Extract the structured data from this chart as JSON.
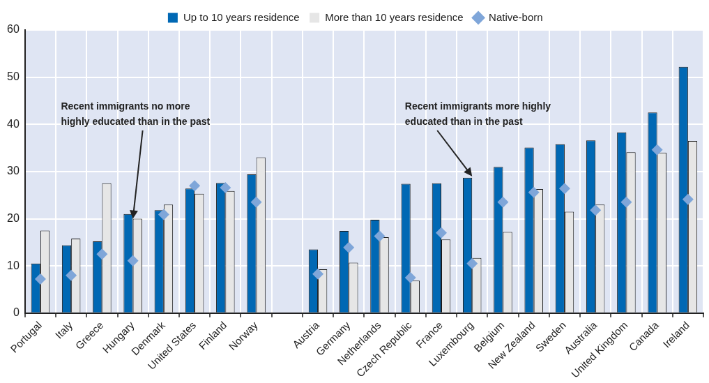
{
  "chart_data": {
    "type": "bar",
    "categories": [
      "Portugal",
      "Italy",
      "Greece",
      "Hungary",
      "Denmark",
      "United States",
      "Finland",
      "Norway",
      null,
      "Austria",
      "Germany",
      "Netherlands",
      "Czech Republic",
      "France",
      "Luxembourg",
      "Belgium",
      "New Zealand",
      "Sweden",
      "Australia",
      "United Kingdom",
      "Canada",
      "Ireland"
    ],
    "series": [
      {
        "name": "Up to 10 years residence",
        "color": "#0068b4",
        "values": [
          10.5,
          14.4,
          15.2,
          21.0,
          21.8,
          26.4,
          27.6,
          29.4,
          null,
          13.5,
          17.4,
          19.8,
          27.4,
          27.5,
          28.7,
          31.0,
          35.1,
          35.8,
          36.6,
          38.3,
          42.5,
          52.2
        ]
      },
      {
        "name": "More than 10 years residence",
        "color": "#e6e6e6",
        "values": [
          17.5,
          15.8,
          27.5,
          20.0,
          23.0,
          25.3,
          25.9,
          33.0,
          null,
          9.3,
          10.7,
          16.1,
          6.9,
          15.6,
          11.7,
          17.2,
          26.3,
          21.5,
          23.0,
          34.1,
          34.0,
          36.5
        ]
      },
      {
        "name": "Native-born",
        "type": "scatter",
        "color": "#7fa6d9",
        "values": [
          7.2,
          8.0,
          12.5,
          11.1,
          20.9,
          27.0,
          26.6,
          23.5,
          null,
          8.3,
          13.9,
          16.3,
          7.5,
          17.0,
          10.5,
          23.5,
          25.6,
          26.4,
          21.8,
          23.5,
          34.6,
          24.1
        ]
      }
    ],
    "ylim": [
      0,
      60
    ],
    "yticks": [
      0,
      10,
      20,
      30,
      40,
      50,
      60
    ],
    "grid": true,
    "legend": "top",
    "marker": "diamond",
    "annotations": [
      {
        "text": "Recent immigrants no more\nhighly educated than in the past",
        "x": "Hungary",
        "y": 20
      },
      {
        "text": "Recent immigrants more highly\neducated than in the past",
        "x": "Luxembourg",
        "y": 29
      }
    ]
  }
}
